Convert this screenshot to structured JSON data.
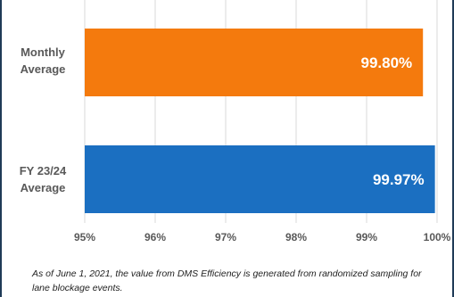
{
  "chart_data": {
    "type": "bar",
    "orientation": "horizontal",
    "categories": [
      "Monthly Average",
      "FY 23/24 Average"
    ],
    "category_label_lines": [
      [
        "Monthly",
        "Average"
      ],
      [
        "FY 23/24",
        "Average"
      ]
    ],
    "values": [
      99.8,
      99.97
    ],
    "data_labels": [
      "99.80%",
      "99.97%"
    ],
    "bar_colors": [
      "#f47a0d",
      "#1b6fc1"
    ],
    "xlim": [
      95,
      100
    ],
    "xticks": [
      95,
      96,
      97,
      98,
      99,
      100
    ],
    "xtick_labels": [
      "95%",
      "96%",
      "97%",
      "98%",
      "99%",
      "100%"
    ],
    "grid": "vertical",
    "title": "",
    "xlabel": "",
    "ylabel": ""
  },
  "footnote": "As of June 1, 2021, the value from DMS Efficiency is generated from randomized sampling for lane blockage events."
}
